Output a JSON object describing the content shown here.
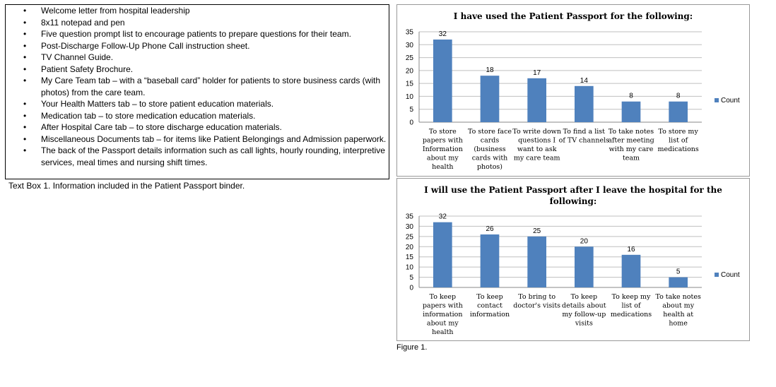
{
  "textbox": {
    "items": [
      "Welcome letter from hospital leadership",
      "8x11 notepad and pen",
      "Five question prompt list to encourage patients to prepare questions for their team.",
      "Post-Discharge Follow-Up Phone Call instruction sheet.",
      "TV Channel Guide.",
      "Patient Safety Brochure.",
      "My Care Team tab – with a “baseball card” holder for patients to store business cards (with photos) from the care team.",
      "Your Health Matters tab – to store patient education materials.",
      "Medication tab – to store medication education materials.",
      "After Hospital Care tab – to store discharge education materials.",
      "Miscellaneous Documents tab – for items like Patient Belongings and Admission paperwork.",
      "The back of the Passport details information such as call lights, hourly rounding, interpretive services, meal times and nursing shift times."
    ],
    "caption": "Text Box 1. Information included in the Patient Passport binder."
  },
  "figure_caption": "Figure 1.",
  "chart_data": [
    {
      "type": "bar",
      "title": "I have used the Patient Passport for the following:",
      "categories": [
        "To store papers with Information about my health",
        "To store face cards (business cards with photos)",
        "To write down questions I want to ask my care team",
        "To find a list of TV channels",
        "To take notes after meeting with my care team",
        "To store my list of medications"
      ],
      "category_lines": [
        [
          "To store",
          "papers with",
          "Information",
          "about my",
          "health"
        ],
        [
          "To store face",
          "cards",
          "(business",
          "cards with",
          "photos)"
        ],
        [
          "To write down",
          "questions I",
          "want to ask",
          "my care team"
        ],
        [
          "To find a list",
          "of TV channels"
        ],
        [
          "To take notes",
          "after meeting",
          "with my care",
          "team"
        ],
        [
          "To store my",
          "list of",
          "medications"
        ]
      ],
      "series": [
        {
          "name": "Count",
          "values": [
            32,
            18,
            17,
            14,
            8,
            8
          ]
        }
      ],
      "ylim": [
        0,
        35
      ],
      "yticks": [
        0,
        5,
        10,
        15,
        20,
        25,
        30,
        35
      ],
      "grid": true,
      "legend": "right",
      "color": "#4f81bd"
    },
    {
      "type": "bar",
      "title": "I will use the Patient Passport after I leave the hospital for the following:",
      "title_lines": [
        "I will use the Patient Passport after I leave the hospital for the",
        "following:"
      ],
      "categories": [
        "To keep papers with information about my health",
        "To keep contact information",
        "To bring to doctor's visits",
        "To keep details about my follow-up visits",
        "To keep my list of medications",
        "To take notes about my health at home"
      ],
      "category_lines": [
        [
          "To keep",
          "papers with",
          "information",
          "about my",
          "health"
        ],
        [
          "To keep",
          "contact",
          "information"
        ],
        [
          "To bring to",
          "doctor's visits"
        ],
        [
          "To keep",
          "details about",
          "my follow-up",
          "visits"
        ],
        [
          "To keep my",
          "list of",
          "medications"
        ],
        [
          "To take notes",
          "about my",
          "health at",
          "home"
        ]
      ],
      "series": [
        {
          "name": "Count",
          "values": [
            32,
            26,
            25,
            20,
            16,
            5
          ]
        }
      ],
      "ylim": [
        0,
        35
      ],
      "yticks": [
        0,
        5,
        10,
        15,
        20,
        25,
        30,
        35
      ],
      "grid": true,
      "legend": "right",
      "color": "#4f81bd"
    }
  ]
}
